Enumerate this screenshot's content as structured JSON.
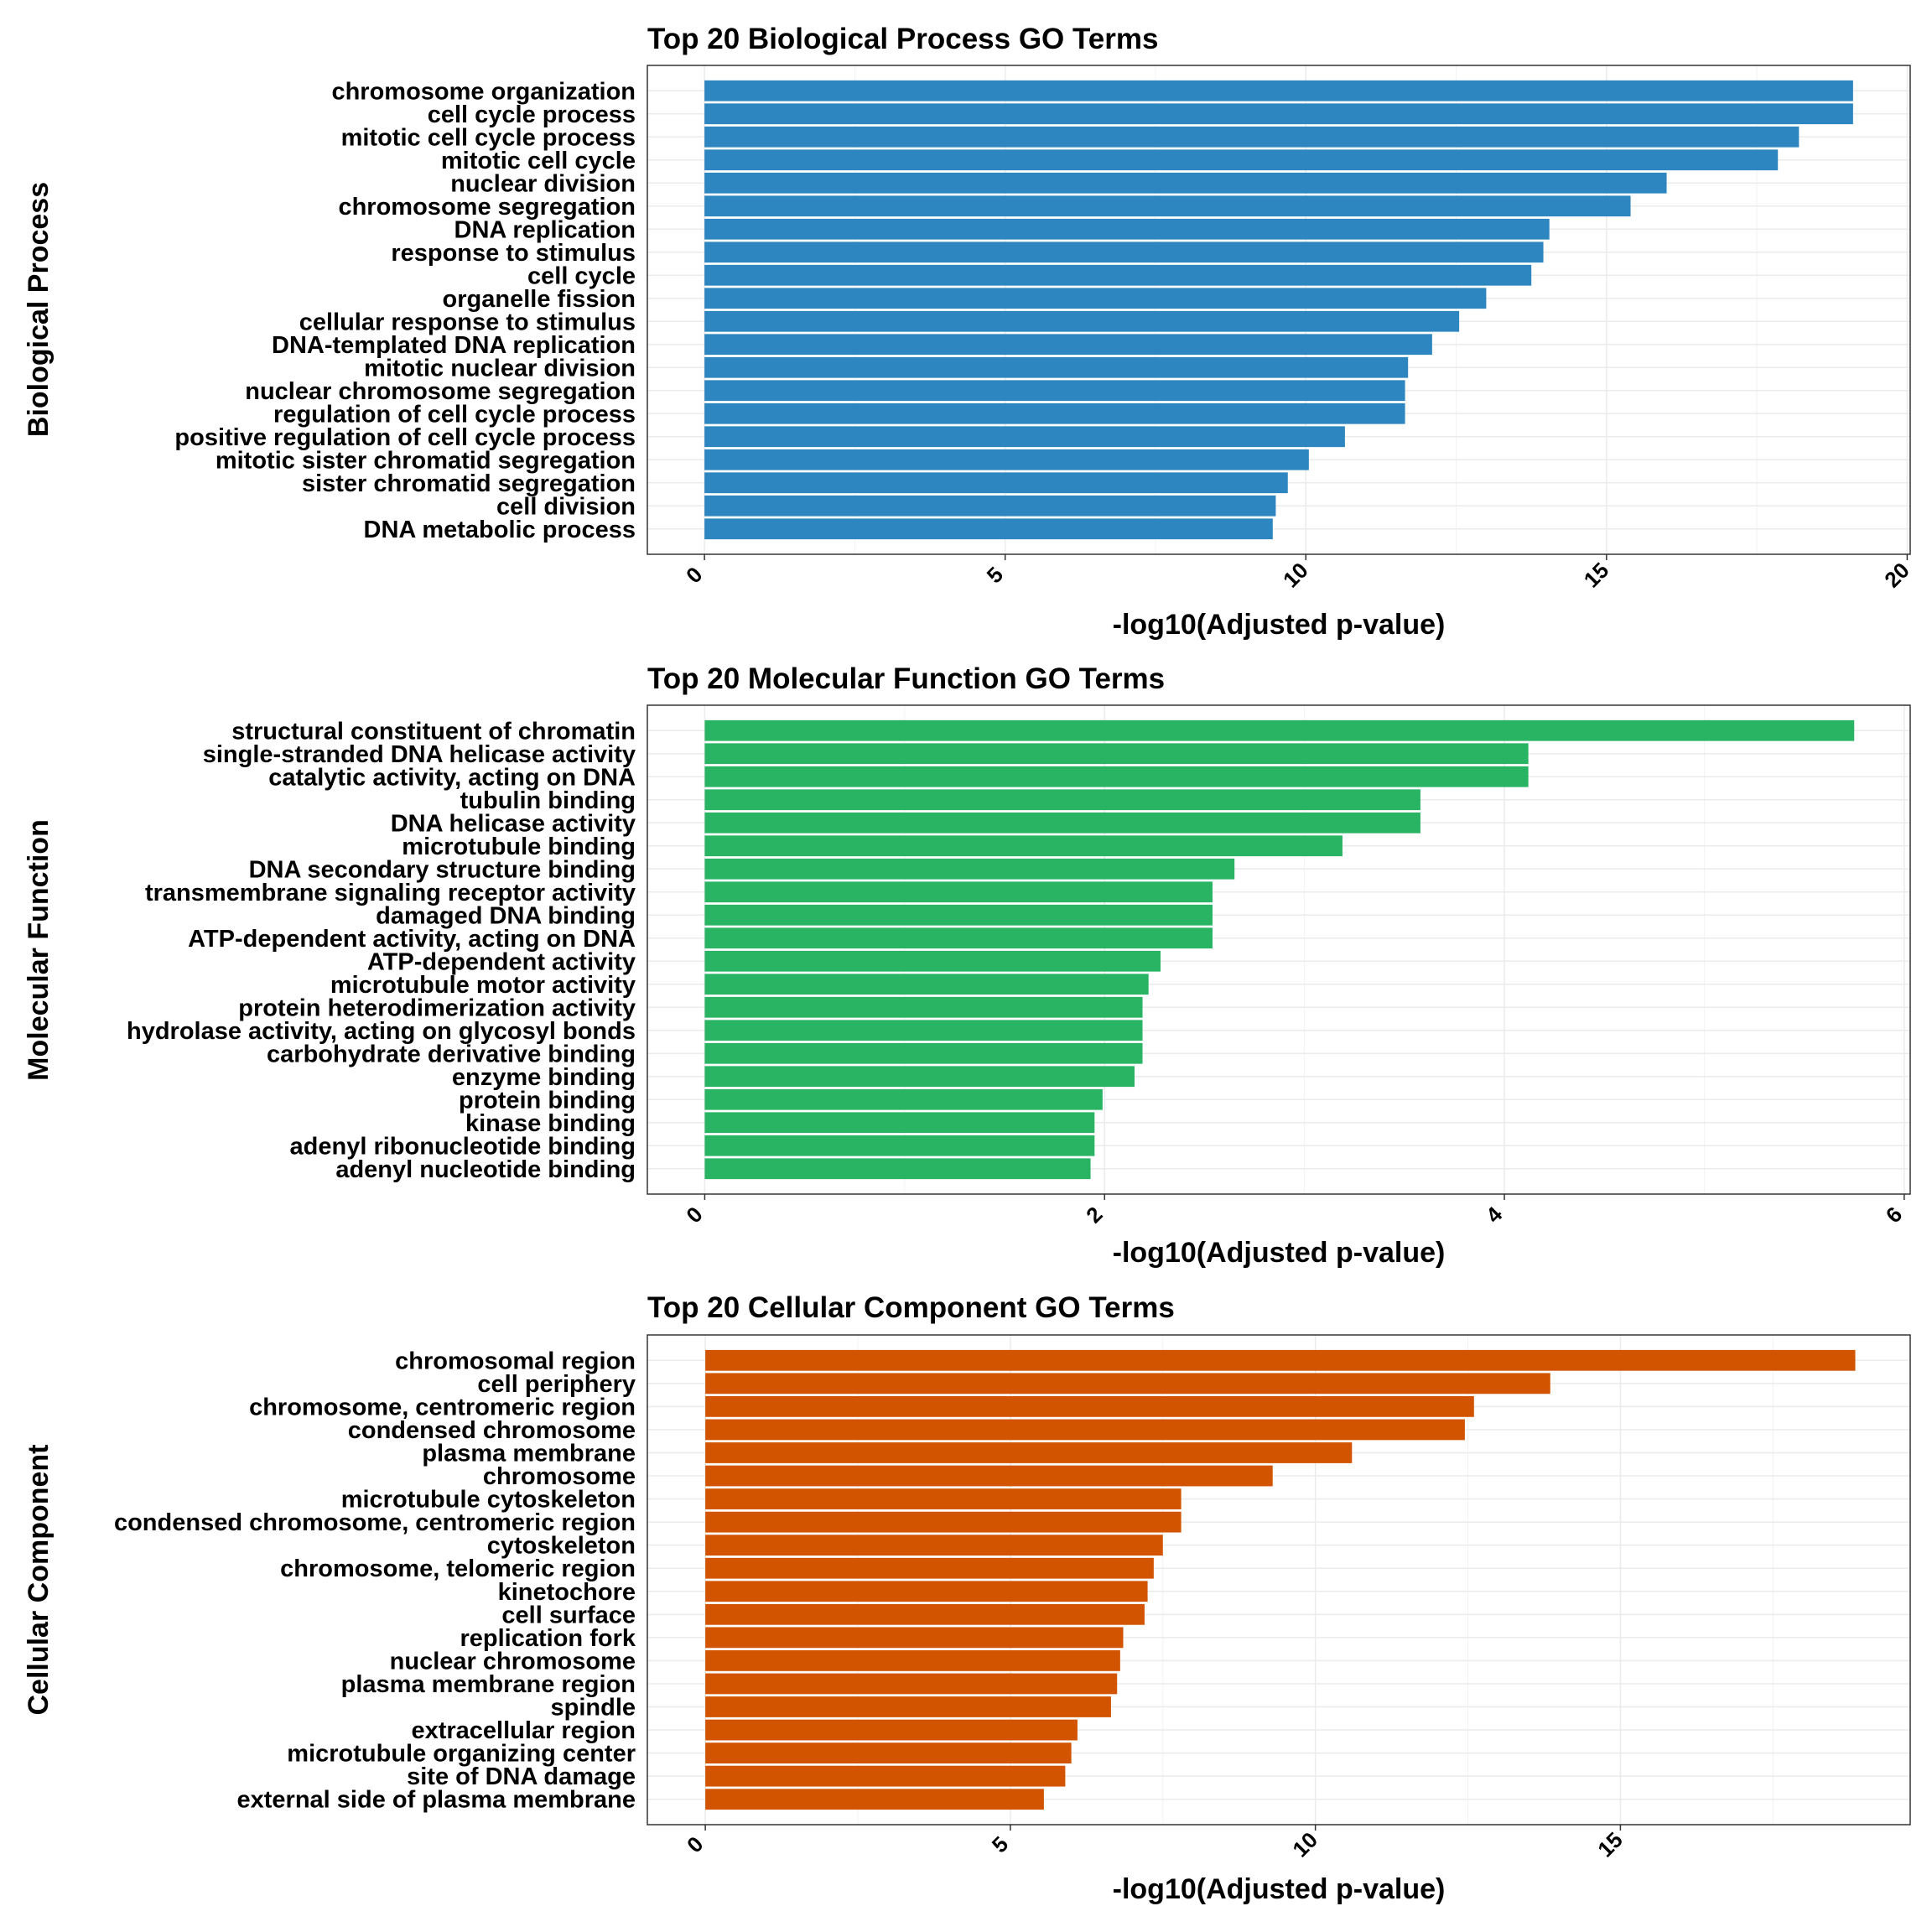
{
  "chart_data": [
    {
      "type": "bar",
      "orientation": "horizontal",
      "title": "Top 20 Biological Process GO Terms",
      "ylabel": "Biological Process",
      "xlabel": "-log10(Adjusted p-value)",
      "xlim": [
        -0.95,
        20.05
      ],
      "xticks": [
        0,
        5,
        10,
        15,
        20
      ],
      "color": "#2e86c1",
      "categories": [
        "chromosome organization",
        "cell cycle process",
        "mitotic cell cycle process",
        "mitotic cell cycle",
        "nuclear division",
        "chromosome segregation",
        "DNA replication",
        "response to stimulus",
        "cell cycle",
        "organelle fission",
        "cellular response to stimulus",
        "DNA-templated DNA replication",
        "mitotic nuclear division",
        "nuclear chromosome segregation",
        "regulation of cell cycle process",
        "positive regulation of cell cycle process",
        "mitotic sister chromatid segregation",
        "sister chromatid segregation",
        "cell division",
        "DNA metabolic process"
      ],
      "values": [
        19.1,
        19.1,
        18.2,
        17.85,
        16.0,
        15.4,
        14.05,
        13.95,
        13.75,
        13.0,
        12.55,
        12.1,
        11.7,
        11.65,
        11.65,
        10.65,
        10.05,
        9.7,
        9.5,
        9.45
      ]
    },
    {
      "type": "bar",
      "orientation": "horizontal",
      "title": "Top 20 Molecular Function GO Terms",
      "ylabel": "Molecular Function",
      "xlabel": "-log10(Adjusted p-value)",
      "xlim": [
        -0.287,
        6.03
      ],
      "xticks": [
        0,
        2,
        4,
        6
      ],
      "color": "#28b463",
      "categories": [
        "structural constituent of chromatin",
        "single-stranded DNA helicase activity",
        "catalytic activity, acting on DNA",
        "tubulin binding",
        "DNA helicase activity",
        "microtubule binding",
        "DNA secondary structure binding",
        "transmembrane signaling receptor activity",
        "damaged DNA binding",
        "ATP-dependent activity, acting on DNA",
        "ATP-dependent activity",
        "microtubule motor activity",
        "protein heterodimerization activity",
        "hydrolase activity, acting on glycosyl bonds",
        "carbohydrate derivative binding",
        "enzyme binding",
        "protein binding",
        "kinase binding",
        "adenyl ribonucleotide binding",
        "adenyl nucleotide binding"
      ],
      "values": [
        5.75,
        4.12,
        4.12,
        3.58,
        3.58,
        3.19,
        2.65,
        2.54,
        2.54,
        2.54,
        2.28,
        2.22,
        2.19,
        2.19,
        2.19,
        2.15,
        1.99,
        1.95,
        1.95,
        1.93
      ]
    },
    {
      "type": "bar",
      "orientation": "horizontal",
      "title": "Top 20 Cellular Component GO Terms",
      "ylabel": "Cellular Component",
      "xlabel": "-log10(Adjusted p-value)",
      "xlim": [
        -0.95,
        19.75
      ],
      "xticks": [
        0,
        5,
        10,
        15
      ],
      "color": "#d35400",
      "categories": [
        "chromosomal region",
        "cell periphery",
        "chromosome, centromeric region",
        "condensed chromosome",
        "plasma membrane",
        "chromosome",
        "microtubule cytoskeleton",
        "condensed chromosome, centromeric region",
        "cytoskeleton",
        "chromosome, telomeric region",
        "kinetochore",
        "cell surface",
        "replication fork",
        "nuclear chromosome",
        "plasma membrane region",
        "spindle",
        "extracellular region",
        "microtubule organizing center",
        "site of DNA damage",
        "external side of plasma membrane"
      ],
      "values": [
        18.85,
        13.85,
        12.6,
        12.45,
        10.6,
        9.3,
        7.8,
        7.8,
        7.5,
        7.35,
        7.25,
        7.2,
        6.85,
        6.8,
        6.75,
        6.65,
        6.1,
        6.0,
        5.9,
        5.55
      ]
    }
  ]
}
